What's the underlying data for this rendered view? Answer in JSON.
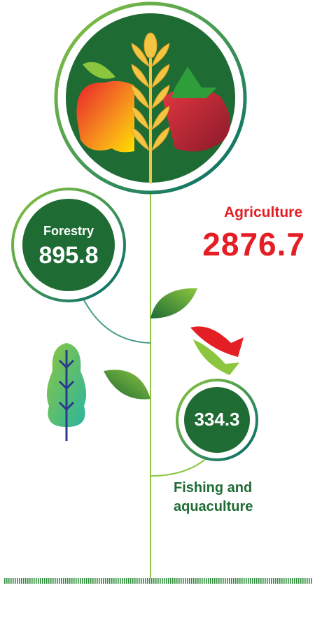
{
  "items": [
    {
      "label": "Agriculture",
      "value": 2876.7
    },
    {
      "label": "Forestry",
      "value": 895.8
    },
    {
      "label": "Fishing and aquaculture",
      "value": 334.3
    }
  ]
}
